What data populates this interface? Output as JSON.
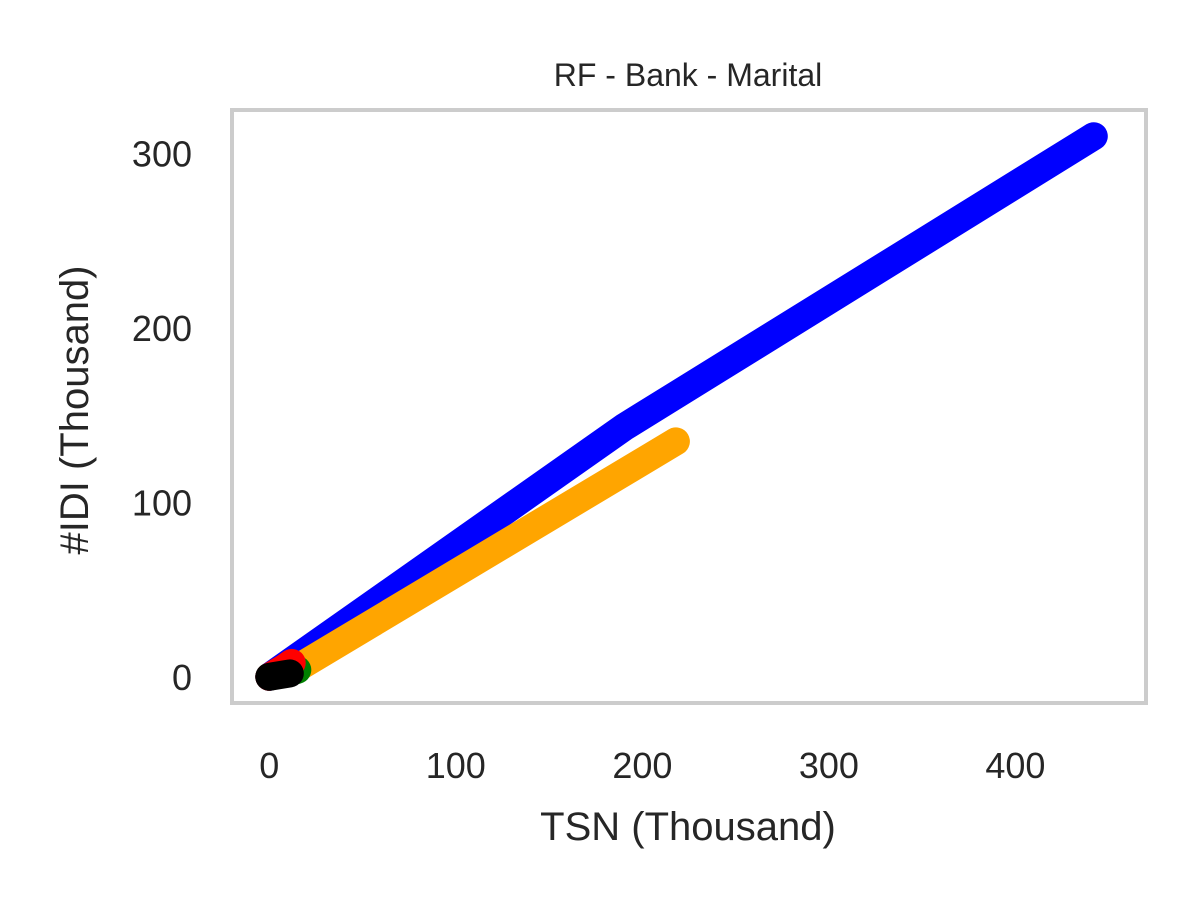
{
  "chart_data": {
    "type": "line",
    "title": "RF - Bank - Marital",
    "xlabel": "TSN (Thousand)",
    "ylabel": "#IDI (Thousand)",
    "xlim": [
      -20,
      470
    ],
    "ylim": [
      -15,
      325
    ],
    "xticks": [
      0,
      100,
      200,
      300,
      400
    ],
    "yticks": [
      0,
      100,
      200,
      300
    ],
    "grid": false,
    "frame_color": "#cccccc",
    "series": [
      {
        "name": "blue",
        "color": "#0000ff",
        "x": [
          0,
          190,
          442
        ],
        "y": [
          0,
          143,
          310
        ]
      },
      {
        "name": "orange",
        "color": "#ffa500",
        "x": [
          15,
          218
        ],
        "y": [
          5,
          135
        ]
      },
      {
        "name": "green",
        "color": "#008000",
        "x": [
          0,
          15
        ],
        "y": [
          0,
          4
        ]
      },
      {
        "name": "red",
        "color": "#ff0000",
        "x": [
          0,
          8,
          12
        ],
        "y": [
          0,
          5,
          8
        ]
      },
      {
        "name": "black",
        "color": "#000000",
        "x": [
          0,
          11
        ],
        "y": [
          0,
          2
        ]
      }
    ]
  }
}
